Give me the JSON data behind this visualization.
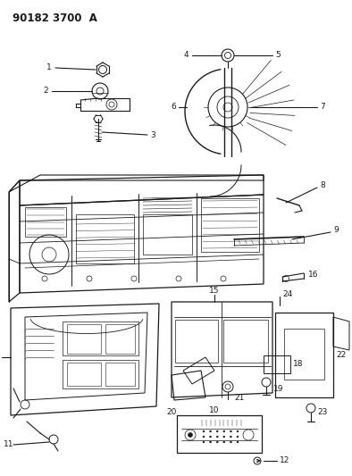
{
  "title": "90182 3700  A",
  "bg_color": "#ffffff",
  "line_color": "#1a1a1a",
  "fig_width": 3.94,
  "fig_height": 5.33,
  "dpi": 100
}
